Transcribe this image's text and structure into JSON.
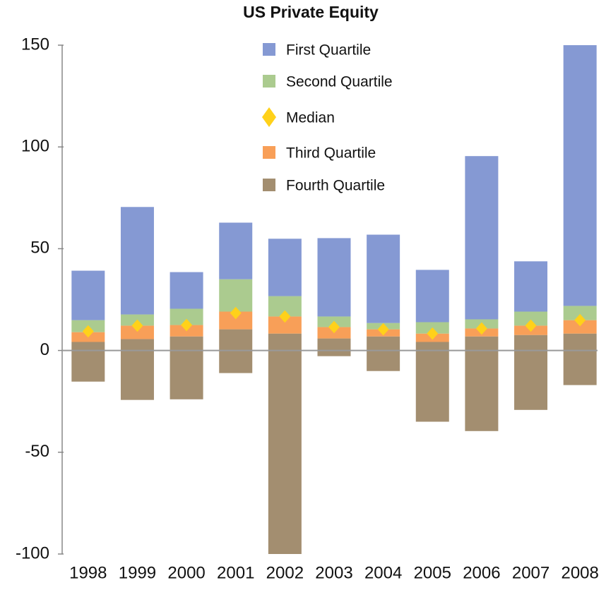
{
  "chart_data": {
    "type": "range_bar",
    "title": "US Private Equity",
    "categories": [
      "1998",
      "1999",
      "2000",
      "2001",
      "2002",
      "2003",
      "2004",
      "2005",
      "2006",
      "2007",
      "2008"
    ],
    "series": [
      {
        "name": "First Quartile",
        "color": "#8599d3",
        "values": [
          [
            14.9,
            39.2
          ],
          [
            17.7,
            70.5
          ],
          [
            20.5,
            38.5
          ],
          [
            35,
            62.8
          ],
          [
            26.7,
            54.9
          ],
          [
            16.7,
            55.2
          ],
          [
            13.5,
            56.9
          ],
          [
            13.9,
            39.6
          ],
          [
            15.3,
            95.5
          ],
          [
            19.1,
            43.8
          ],
          [
            21.9,
            150
          ]
        ]
      },
      {
        "name": "Second Quartile",
        "color": "#abcb8f",
        "values": [
          [
            9,
            14.9
          ],
          [
            12.2,
            17.7
          ],
          [
            12.5,
            20.5
          ],
          [
            19.1,
            35
          ],
          [
            16.7,
            26.7
          ],
          [
            11.5,
            16.7
          ],
          [
            10.4,
            13.5
          ],
          [
            8.3,
            13.9
          ],
          [
            10.8,
            15.3
          ],
          [
            12.2,
            19.1
          ],
          [
            14.9,
            21.9
          ]
        ]
      },
      {
        "name": "Median",
        "color": "#ffd11a",
        "marker": "diamond",
        "values": [
          9.4,
          12.2,
          12.5,
          18.4,
          16.7,
          11.5,
          10.4,
          8.3,
          10.8,
          12.2,
          14.9
        ]
      },
      {
        "name": "Third Quartile",
        "color": "#f89f58",
        "values": [
          [
            4.2,
            9
          ],
          [
            5.6,
            12.2
          ],
          [
            6.9,
            12.5
          ],
          [
            10.4,
            19.1
          ],
          [
            8.3,
            16.7
          ],
          [
            5.9,
            11.5
          ],
          [
            6.9,
            10.4
          ],
          [
            4.2,
            8.3
          ],
          [
            6.9,
            10.8
          ],
          [
            7.6,
            12.2
          ],
          [
            8.3,
            14.9
          ]
        ]
      },
      {
        "name": "Fourth Quartile",
        "color": "#a38e70",
        "values": [
          [
            -15.3,
            4.2
          ],
          [
            -24.3,
            5.6
          ],
          [
            -24,
            6.9
          ],
          [
            -11.1,
            10.4
          ],
          [
            -100,
            8.3
          ],
          [
            -2.8,
            5.9
          ],
          [
            -10.1,
            6.9
          ],
          [
            -35,
            4.2
          ],
          [
            -39.6,
            6.9
          ],
          [
            -29.2,
            7.6
          ],
          [
            -17,
            8.3
          ]
        ]
      }
    ],
    "ylim": [
      -100,
      150
    ],
    "yticks": [
      -100,
      -50,
      0,
      50,
      100,
      150
    ],
    "grid": false,
    "legend": "top"
  }
}
